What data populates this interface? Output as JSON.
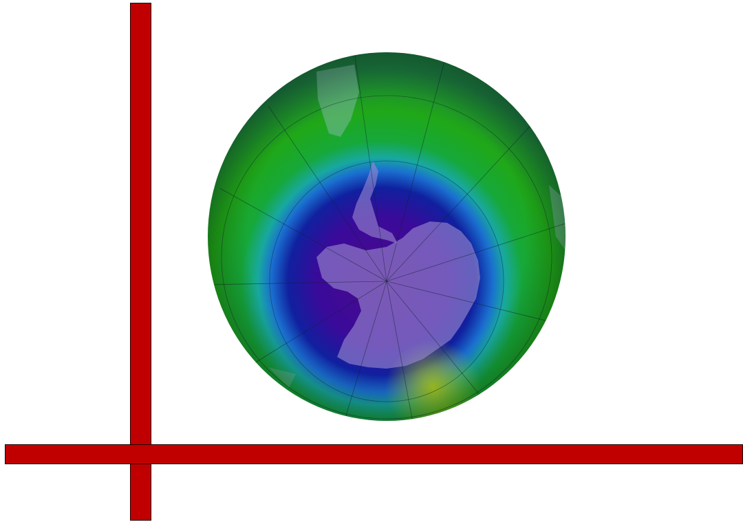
{
  "colors": {
    "bar_fill": "#c00000",
    "bar_border": "#1a0000",
    "ozone_low": "#3a0a8c",
    "ozone_mid": "#1a3fd0",
    "ozone_high": "#22b020",
    "ozone_peak": "#a8d018",
    "continent_tint": "#9a8ad0"
  },
  "icons": {
    "globe": "ozone-hole-globe-icon"
  }
}
